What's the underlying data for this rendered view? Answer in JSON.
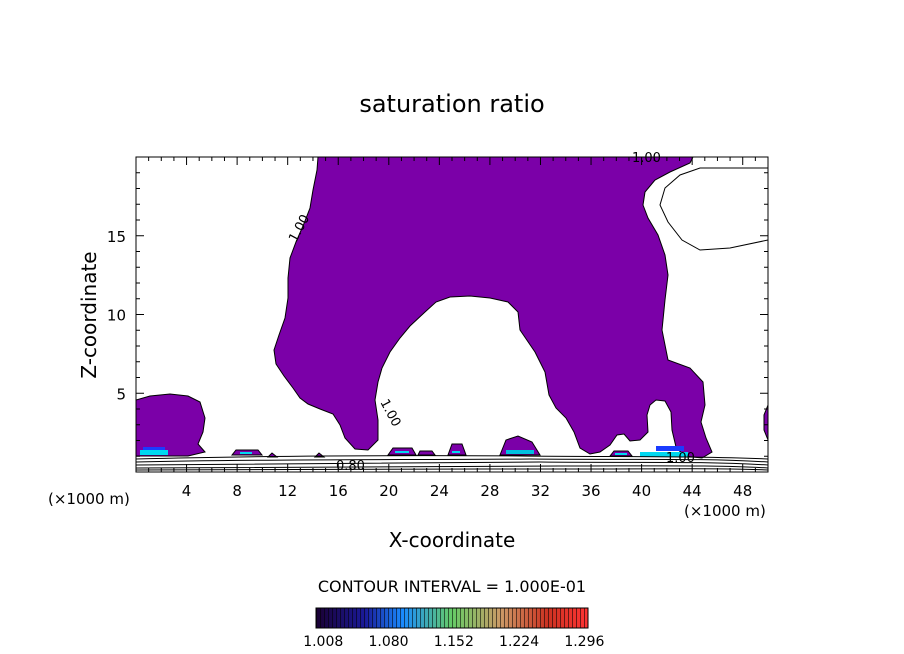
{
  "chart_data": {
    "type": "contour",
    "title": "saturation ratio",
    "xlabel": "X-coordinate",
    "ylabel": "Z-coordinate",
    "x_unit_label": "(×1000 m)",
    "y_unit_label": "(×1000 m)",
    "xlim": [
      0,
      50
    ],
    "ylim": [
      0,
      20
    ],
    "x_ticks": [
      4,
      8,
      12,
      16,
      20,
      24,
      28,
      32,
      36,
      40,
      44,
      48
    ],
    "y_ticks": [
      5,
      10,
      15
    ],
    "contour_interval_text": "CONTOUR INTERVAL = 1.000E-01",
    "contour_labels": [
      "1.00",
      "1.00",
      "1.00",
      "1.00",
      "0.80"
    ],
    "fill_color": "#7b00a8",
    "colorbar": {
      "tick_labels": [
        "1.008",
        "1.080",
        "1.152",
        "1.224",
        "1.296"
      ],
      "range": [
        1.0,
        1.3
      ],
      "colors": [
        "#1a0033",
        "#1a1a99",
        "#1a8cff",
        "#66cc66",
        "#cc9966",
        "#cc3322",
        "#ff3333"
      ]
    }
  }
}
